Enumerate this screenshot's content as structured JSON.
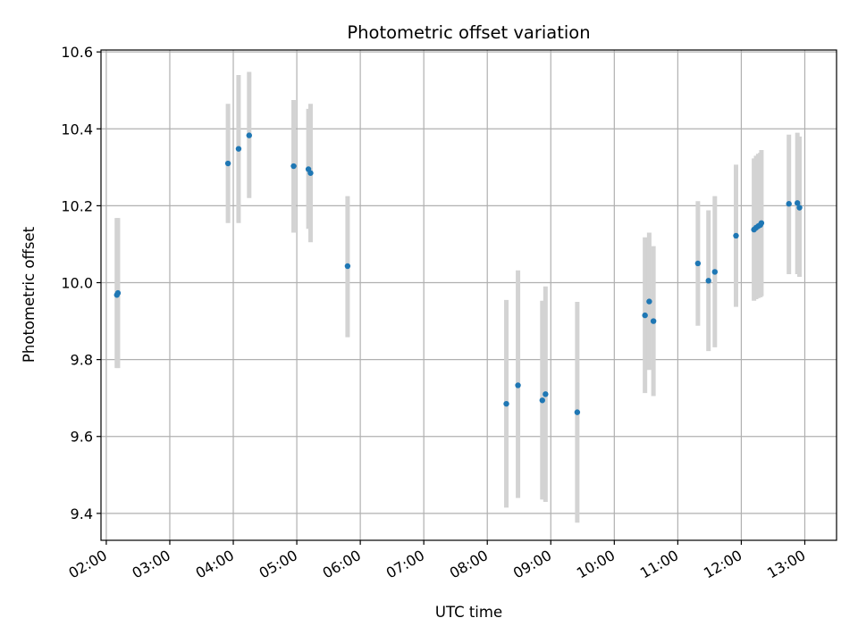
{
  "chart_data": {
    "type": "scatter",
    "title": "Photometric offset variation",
    "xlabel": "UTC time",
    "ylabel": "Photometric offset",
    "xlim": [
      "01:55",
      "13:30"
    ],
    "ylim": [
      9.33,
      10.605
    ],
    "x_ticks": [
      "02:00",
      "03:00",
      "04:00",
      "05:00",
      "06:00",
      "07:00",
      "08:00",
      "09:00",
      "10:00",
      "11:00",
      "12:00",
      "13:00"
    ],
    "y_ticks": [
      "9.4",
      "9.6",
      "9.8",
      "10.0",
      "10.2",
      "10.4",
      "10.6"
    ],
    "grid": true,
    "colors": {
      "points": "#1f77b4",
      "error_bars": "#d3d3d3",
      "grid": "#b0b0b0"
    },
    "series": [
      {
        "points": [
          {
            "t": "02:10",
            "y": 9.968,
            "ylo": 9.778,
            "yhi": 10.168
          },
          {
            "t": "02:11",
            "y": 9.973,
            "ylo": 9.778,
            "yhi": 10.168
          },
          {
            "t": "03:55",
            "y": 10.31,
            "ylo": 10.155,
            "yhi": 10.465
          },
          {
            "t": "04:05",
            "y": 10.348,
            "ylo": 10.155,
            "yhi": 10.54
          },
          {
            "t": "04:15",
            "y": 10.383,
            "ylo": 10.22,
            "yhi": 10.548
          },
          {
            "t": "04:57",
            "y": 10.303,
            "ylo": 10.13,
            "yhi": 10.475
          },
          {
            "t": "05:11",
            "y": 10.295,
            "ylo": 10.14,
            "yhi": 10.452
          },
          {
            "t": "05:13",
            "y": 10.285,
            "ylo": 10.105,
            "yhi": 10.465
          },
          {
            "t": "05:48",
            "y": 10.043,
            "ylo": 9.858,
            "yhi": 10.225
          },
          {
            "t": "08:18",
            "y": 9.685,
            "ylo": 9.415,
            "yhi": 9.955
          },
          {
            "t": "08:29",
            "y": 9.733,
            "ylo": 9.44,
            "yhi": 10.032
          },
          {
            "t": "08:52",
            "y": 9.694,
            "ylo": 9.436,
            "yhi": 9.953
          },
          {
            "t": "08:55",
            "y": 9.71,
            "ylo": 9.43,
            "yhi": 9.99
          },
          {
            "t": "09:25",
            "y": 9.663,
            "ylo": 9.376,
            "yhi": 9.95
          },
          {
            "t": "10:29",
            "y": 9.915,
            "ylo": 9.713,
            "yhi": 10.118
          },
          {
            "t": "10:33",
            "y": 9.951,
            "ylo": 9.773,
            "yhi": 10.13
          },
          {
            "t": "10:37",
            "y": 9.9,
            "ylo": 9.705,
            "yhi": 10.095
          },
          {
            "t": "11:19",
            "y": 10.05,
            "ylo": 9.888,
            "yhi": 10.212
          },
          {
            "t": "11:29",
            "y": 10.005,
            "ylo": 9.822,
            "yhi": 10.188
          },
          {
            "t": "11:35",
            "y": 10.028,
            "ylo": 9.832,
            "yhi": 10.225
          },
          {
            "t": "11:55",
            "y": 10.122,
            "ylo": 9.937,
            "yhi": 10.307
          },
          {
            "t": "12:12",
            "y": 10.138,
            "ylo": 9.953,
            "yhi": 10.323
          },
          {
            "t": "12:14",
            "y": 10.143,
            "ylo": 9.957,
            "yhi": 10.33
          },
          {
            "t": "12:16",
            "y": 10.147,
            "ylo": 9.96,
            "yhi": 10.335
          },
          {
            "t": "12:18",
            "y": 10.15,
            "ylo": 9.962,
            "yhi": 10.338
          },
          {
            "t": "12:19",
            "y": 10.155,
            "ylo": 9.965,
            "yhi": 10.345
          },
          {
            "t": "12:45",
            "y": 10.205,
            "ylo": 10.022,
            "yhi": 10.385
          },
          {
            "t": "12:53",
            "y": 10.207,
            "ylo": 10.022,
            "yhi": 10.39
          },
          {
            "t": "12:55",
            "y": 10.195,
            "ylo": 10.015,
            "yhi": 10.38
          }
        ]
      }
    ]
  }
}
